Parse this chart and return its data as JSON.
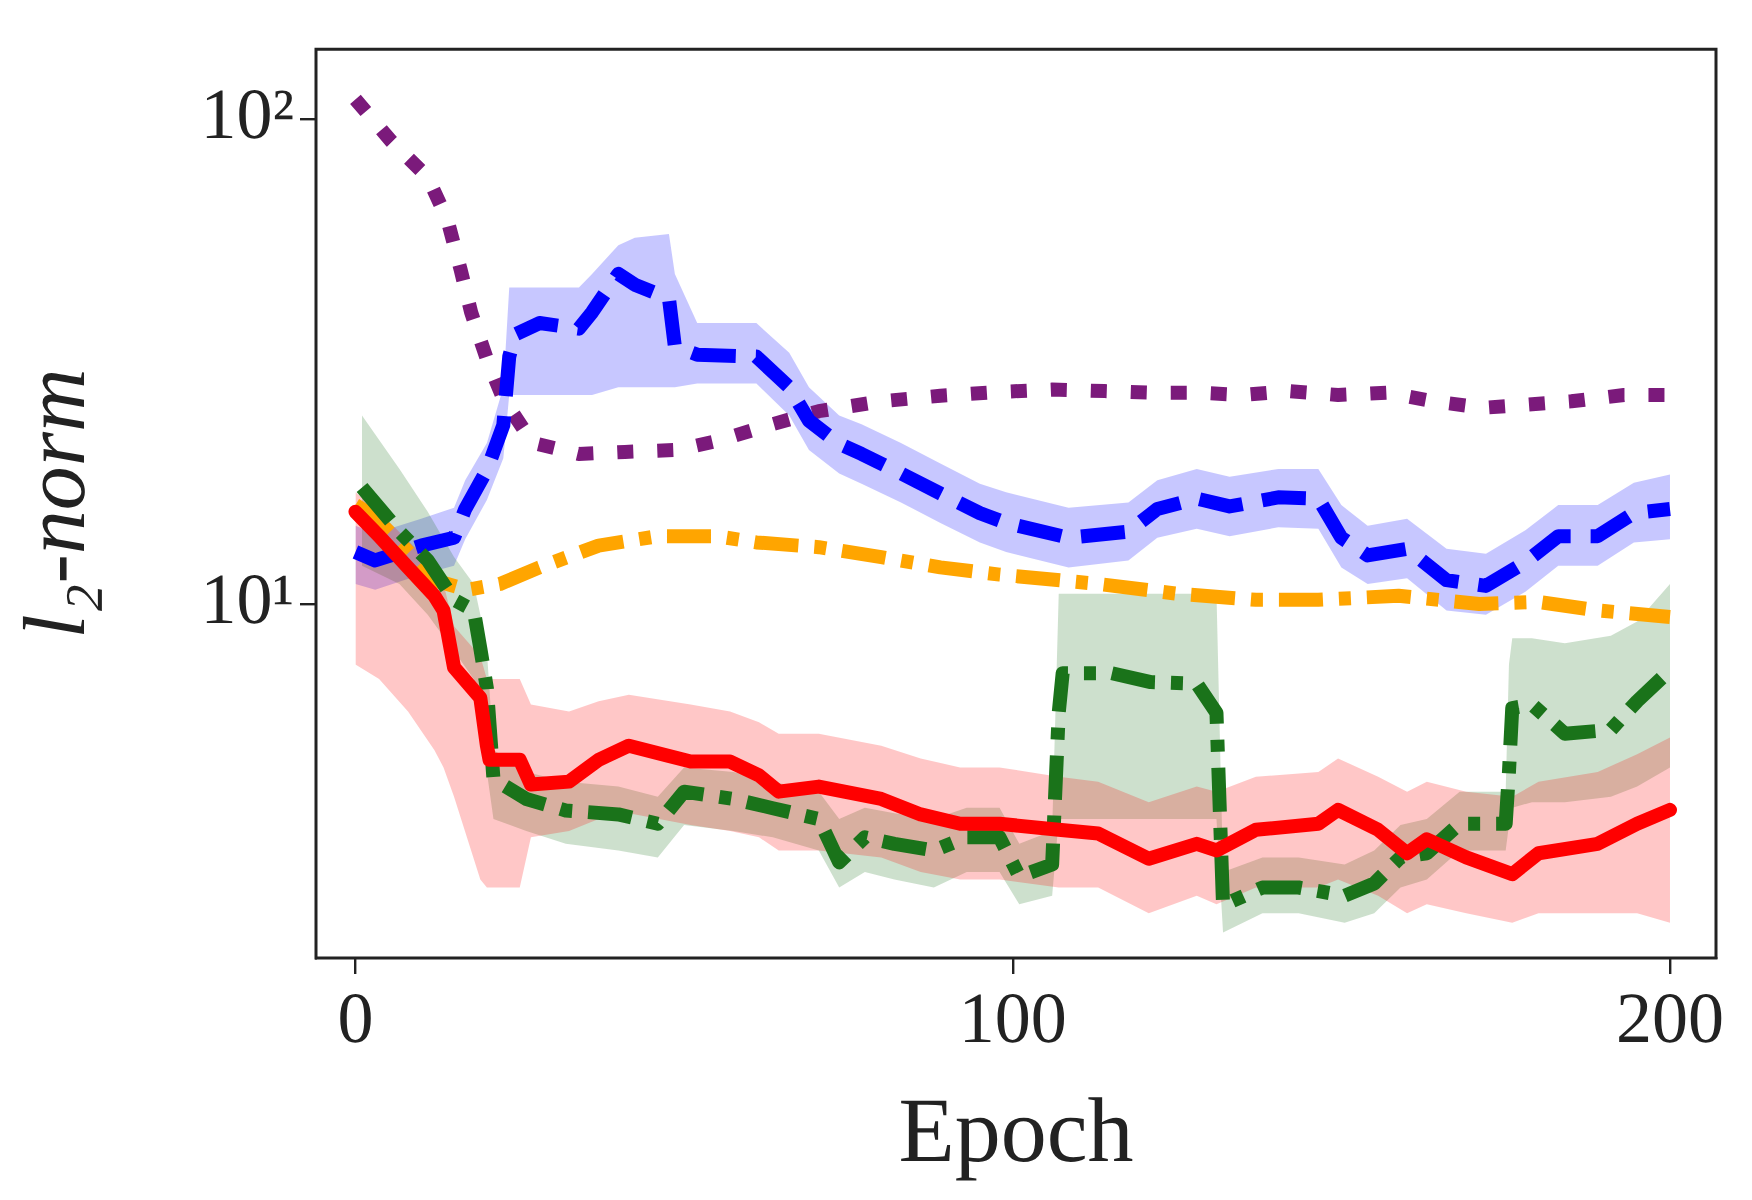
{
  "chart_data": {
    "type": "line",
    "xlabel": "Epoch",
    "ylabel": "l₂-norm",
    "log": "y",
    "grid": false,
    "legend": false,
    "marker": "none",
    "xlim": [
      -6,
      207
    ],
    "xticks": [
      0,
      100,
      200
    ],
    "ylim": [
      1.86,
      139.6
    ],
    "yticks": [
      {
        "value": 10,
        "label": "10¹"
      },
      {
        "value": 100,
        "label": "10²"
      }
    ],
    "series": [
      {
        "color": "#7b1a7b",
        "line_style": "dotted",
        "x": [
          0,
          5.5,
          11,
          14,
          16,
          17.6,
          20,
          22.5,
          27,
          34,
          41,
          49,
          55,
          63,
          70.5,
          80,
          89,
          98,
          106,
          114,
          121,
          128,
          135,
          142,
          149.5,
          157,
          164,
          171.5,
          178.4,
          185,
          193,
          200
        ],
        "values": [
          110,
          90,
          76,
          62,
          49,
          40,
          32,
          26.5,
          21.5,
          20.4,
          20.6,
          20.8,
          21.7,
          23.4,
          25,
          26.2,
          26.9,
          27.4,
          27.7,
          27.5,
          27.3,
          27.3,
          27,
          27.5,
          27,
          27.3,
          26.2,
          25.4,
          25.8,
          26.2,
          27,
          27
        ]
      },
      {
        "color": "#0000ff",
        "line_style": "dashed",
        "x": [
          0,
          3,
          10,
          15,
          16.7,
          20,
          22.5,
          23.4,
          24.3,
          28,
          34,
          36,
          40,
          42.5,
          47.7,
          48.6,
          52,
          61,
          66,
          69,
          73.6,
          77,
          83,
          89,
          95,
          99,
          108.5,
          117.6,
          122,
          128,
          133,
          140.4,
          146.5,
          150,
          154,
          160,
          166,
          172,
          178,
          183,
          189,
          194.5,
          200
        ],
        "values": [
          12.8,
          12.3,
          13.2,
          13.7,
          15.7,
          18.9,
          23.4,
          32.4,
          36,
          38,
          37,
          40,
          48,
          45.6,
          42.7,
          34,
          32.7,
          32.4,
          28,
          23.9,
          21.4,
          20.4,
          18.6,
          16.9,
          15.4,
          14.7,
          13.7,
          14.1,
          15.7,
          16.5,
          15.9,
          16.6,
          16.5,
          13.7,
          12.6,
          13,
          11.2,
          10.9,
          12.2,
          13.8,
          13.8,
          15.4,
          15.7
        ],
        "upper": [
          14.5,
          14,
          15,
          15.8,
          18,
          21.5,
          28,
          45,
          45,
          45,
          45,
          48,
          55,
          57,
          58,
          48,
          38,
          38,
          33,
          28,
          24.5,
          23.5,
          21.5,
          19.5,
          17.7,
          17,
          15.8,
          16.2,
          18,
          19,
          18.3,
          19,
          19,
          16,
          14.5,
          15,
          13,
          12.7,
          14.2,
          16,
          16,
          17.8,
          18.5
        ],
        "lower": [
          11,
          10.7,
          11.5,
          12,
          13.6,
          16.4,
          20,
          27,
          27,
          27,
          27,
          27,
          28,
          28,
          28,
          28,
          28.5,
          28.5,
          24.5,
          20.8,
          18.6,
          17.7,
          16.2,
          14.7,
          13.4,
          12.8,
          11.9,
          12.3,
          13.7,
          14.3,
          13.8,
          14.4,
          14.3,
          11.9,
          11,
          11.3,
          9.7,
          9.5,
          10.6,
          12,
          12,
          13.4,
          13.6
        ]
      },
      {
        "color": "#ffa500",
        "line_style": "dashdot",
        "x": [
          0,
          2.7,
          6.7,
          12,
          17,
          22,
          28,
          37,
          46,
          55,
          61,
          70.5,
          80,
          89,
          98,
          101,
          113,
          125,
          137,
          146.5,
          158.7,
          171,
          180,
          189,
          200
        ],
        "values": [
          16,
          15.2,
          13.4,
          11.2,
          10.7,
          11,
          11.9,
          13.2,
          13.8,
          13.8,
          13.4,
          13.1,
          12.5,
          11.9,
          11.5,
          11.4,
          11,
          10.5,
          10.2,
          10.2,
          10.4,
          10,
          10.1,
          9.7,
          9.4
        ]
      },
      {
        "color": "#1a731a",
        "line_style": "dashdot",
        "x": [
          1,
          6.7,
          11,
          15,
          18,
          19,
          20,
          21,
          26,
          32,
          40,
          46,
          50,
          57.5,
          63.5,
          70.5,
          73.6,
          77.5,
          82,
          88,
          93,
          98,
          101,
          106,
          107,
          107.6,
          115,
          121,
          128,
          131,
          132,
          138,
          143.5,
          150.5,
          155,
          159,
          163,
          168,
          175,
          175.5,
          176,
          179,
          184,
          191,
          195,
          200
        ],
        "values": [
          17.4,
          14.1,
          12.3,
          10.2,
          9.7,
          8.1,
          6.7,
          4.35,
          3.96,
          3.75,
          3.68,
          3.52,
          4.1,
          3.96,
          3.79,
          3.6,
          2.93,
          3.3,
          3.2,
          3.1,
          3.3,
          3.3,
          2.74,
          2.9,
          5.96,
          7.2,
          7.2,
          6.9,
          6.85,
          5.96,
          2.39,
          2.6,
          2.6,
          2.5,
          2.65,
          3.0,
          3.06,
          3.52,
          3.52,
          4.5,
          6.1,
          6.2,
          5.4,
          5.5,
          6.3,
          7.3
        ],
        "upper": [
          24.5,
          19,
          15.5,
          12.5,
          11,
          9.5,
          8,
          5,
          4.5,
          4.3,
          4.2,
          4,
          4.6,
          4.5,
          4.3,
          4.1,
          3.6,
          3.8,
          3.7,
          3.6,
          3.8,
          3.8,
          3.2,
          3.4,
          10.5,
          10.5,
          10.5,
          10.5,
          10.5,
          10.5,
          2.8,
          3,
          3,
          2.9,
          3.1,
          3.5,
          3.6,
          4.1,
          4.1,
          7.5,
          8.5,
          8.5,
          8.3,
          8.6,
          9.2,
          11
        ],
        "lower": [
          12,
          11,
          9.5,
          8,
          7,
          5.5,
          4.5,
          3.6,
          3.4,
          3.2,
          3.1,
          3,
          3.5,
          3.4,
          3.3,
          3.1,
          2.6,
          2.8,
          2.7,
          2.6,
          2.8,
          2.8,
          2.4,
          2.5,
          3.6,
          3.6,
          3.6,
          3.6,
          3.6,
          3.6,
          2.1,
          2.3,
          2.3,
          2.2,
          2.3,
          2.6,
          2.7,
          3.1,
          3.1,
          3.5,
          3.8,
          3.9,
          3.9,
          4,
          4.2,
          4.6
        ]
      },
      {
        "color": "#ff0000",
        "line_style": "solid",
        "x": [
          0,
          3.6,
          8,
          12,
          13.4,
          15,
          19,
          20,
          20.4,
          25,
          26.7,
          32.5,
          37,
          41.6,
          51,
          57,
          61.4,
          64.4,
          70.5,
          80,
          86,
          92,
          98,
          107,
          113,
          120.7,
          128,
          131,
          137,
          146.5,
          149.5,
          155.6,
          160,
          163,
          169,
          176,
          180,
          189,
          195,
          200
        ],
        "values": [
          15.5,
          13.8,
          11.9,
          10.4,
          9.7,
          7.4,
          6.4,
          5.1,
          4.77,
          4.77,
          4.24,
          4.3,
          4.77,
          5.1,
          4.73,
          4.73,
          4.43,
          4.1,
          4.2,
          3.96,
          3.68,
          3.52,
          3.52,
          3.42,
          3.36,
          2.98,
          3.2,
          3.1,
          3.42,
          3.52,
          3.76,
          3.42,
          3.06,
          3.27,
          3.0,
          2.77,
          3.06,
          3.2,
          3.52,
          3.76
        ],
        "upper": [
          17,
          15.5,
          13.5,
          12,
          11,
          9,
          7.8,
          7,
          7,
          7,
          6.2,
          6,
          6.3,
          6.5,
          6.2,
          6,
          5.7,
          5.4,
          5.4,
          5.1,
          4.8,
          4.6,
          4.6,
          4.4,
          4.3,
          3.9,
          4.2,
          4.1,
          4.4,
          4.5,
          4.8,
          4.4,
          4.1,
          4.3,
          4.1,
          4.0,
          4.3,
          4.5,
          4.9,
          5.3
        ],
        "lower": [
          7.5,
          7,
          6,
          5,
          4.6,
          4,
          2.7,
          2.6,
          2.6,
          2.6,
          3.3,
          3.4,
          3.6,
          3.7,
          3.5,
          3.4,
          3.3,
          3.1,
          3.1,
          3.0,
          2.8,
          2.7,
          2.7,
          2.6,
          2.6,
          2.3,
          2.5,
          2.4,
          2.6,
          2.6,
          2.7,
          2.5,
          2.3,
          2.4,
          2.3,
          2.2,
          2.3,
          2.3,
          2.3,
          2.2
        ]
      }
    ]
  }
}
